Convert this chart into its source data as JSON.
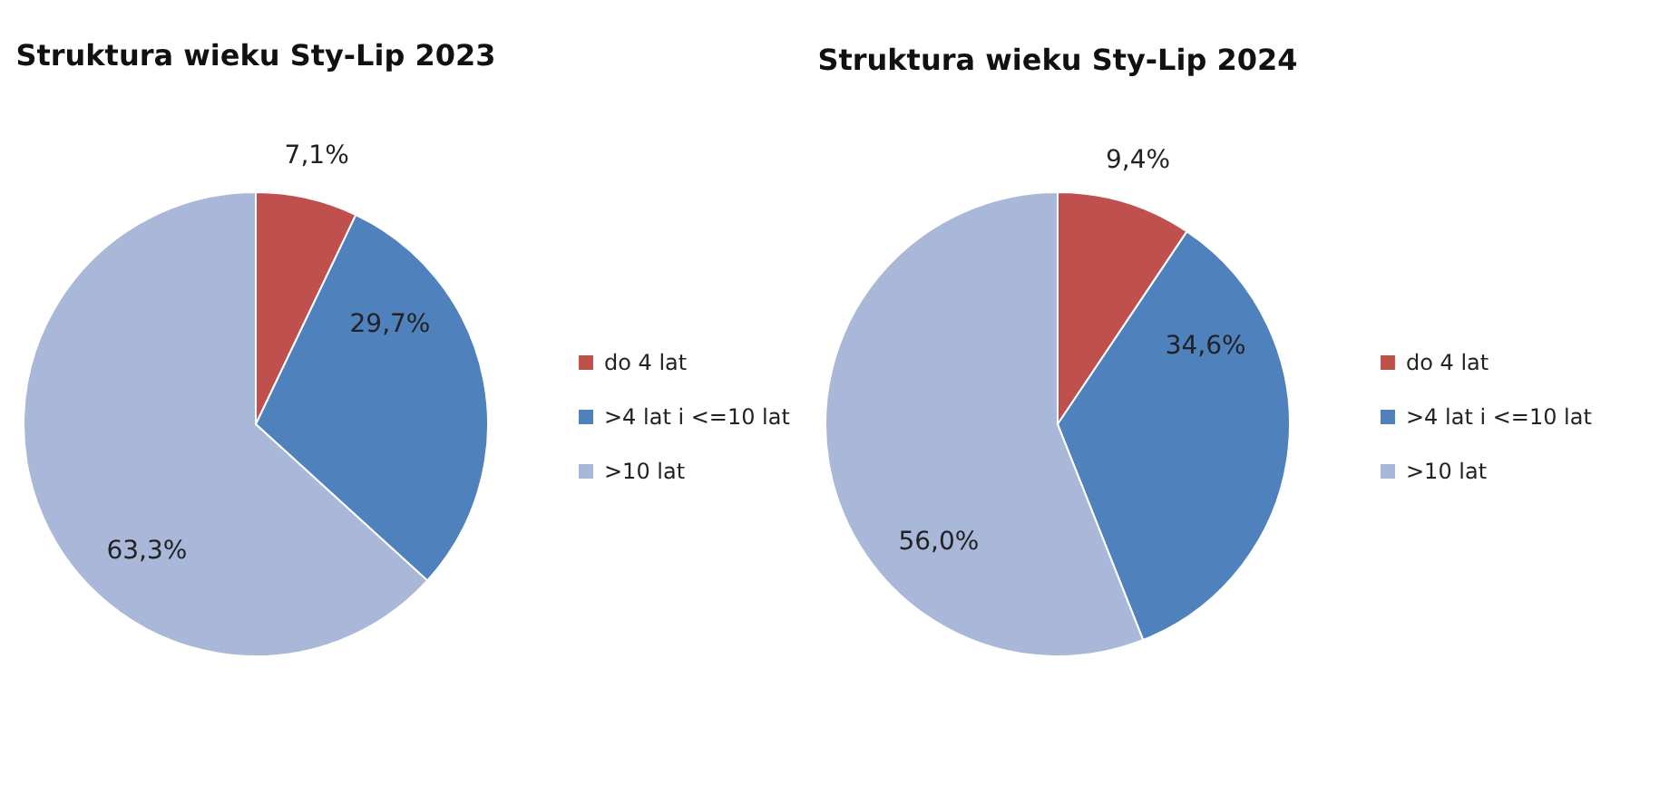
{
  "chart_data": [
    {
      "type": "pie",
      "title": "Struktura wieku Sty-Lip 2023",
      "categories": [
        "do 4 lat",
        ">4 lat i <=10 lat",
        ">10 lat"
      ],
      "values": [
        7.1,
        29.7,
        63.3
      ],
      "value_labels": [
        "7,1%",
        "29,7%",
        "63,3%"
      ],
      "colors": [
        "#c0504d",
        "#4f81bd",
        "#a9b8d9"
      ],
      "legend": "right"
    },
    {
      "type": "pie",
      "title": "Struktura wieku Sty-Lip 2024",
      "categories": [
        "do 4 lat",
        ">4 lat i <=10 lat",
        ">10 lat"
      ],
      "values": [
        9.4,
        34.6,
        56.0
      ],
      "value_labels": [
        "9,4%",
        "34,6%",
        "56,0%"
      ],
      "colors": [
        "#c0504d",
        "#4f81bd",
        "#a9b8d9"
      ],
      "legend": "right"
    }
  ]
}
